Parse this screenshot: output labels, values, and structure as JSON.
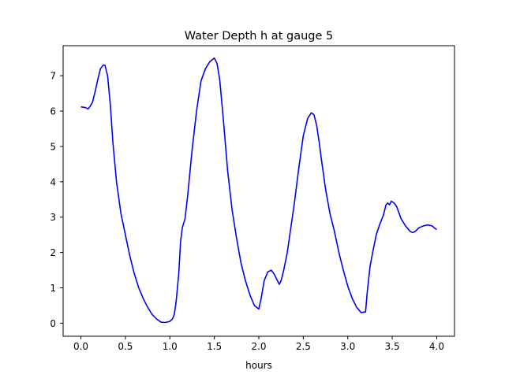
{
  "chart_data": {
    "type": "line",
    "title": "Water Depth h at gauge 5",
    "xlabel": "hours",
    "ylabel": "",
    "xlim": [
      -0.2,
      4.2
    ],
    "ylim": [
      -0.37,
      7.85
    ],
    "xticks": [
      0.0,
      0.5,
      1.0,
      1.5,
      2.0,
      2.5,
      3.0,
      3.5,
      4.0
    ],
    "xtick_labels": [
      "0.0",
      "0.5",
      "1.0",
      "1.5",
      "2.0",
      "2.5",
      "3.0",
      "3.5",
      "4.0"
    ],
    "yticks": [
      0,
      1,
      2,
      3,
      4,
      5,
      6,
      7
    ],
    "ytick_labels": [
      "0",
      "1",
      "2",
      "3",
      "4",
      "5",
      "6",
      "7"
    ],
    "grid": false,
    "legend": "none",
    "series": [
      {
        "color": "#0000ff",
        "x": [
          0.0,
          0.05,
          0.08,
          0.1,
          0.13,
          0.16,
          0.19,
          0.22,
          0.25,
          0.27,
          0.3,
          0.33,
          0.36,
          0.4,
          0.45,
          0.5,
          0.55,
          0.6,
          0.65,
          0.7,
          0.75,
          0.8,
          0.85,
          0.9,
          0.95,
          1.0,
          1.03,
          1.05,
          1.07,
          1.1,
          1.12,
          1.14,
          1.17,
          1.2,
          1.25,
          1.3,
          1.35,
          1.4,
          1.45,
          1.5,
          1.53,
          1.56,
          1.6,
          1.65,
          1.7,
          1.75,
          1.8,
          1.85,
          1.9,
          1.95,
          2.0,
          2.03,
          2.06,
          2.1,
          2.14,
          2.17,
          2.2,
          2.23,
          2.25,
          2.28,
          2.32,
          2.36,
          2.4,
          2.45,
          2.5,
          2.55,
          2.59,
          2.62,
          2.65,
          2.68,
          2.7,
          2.75,
          2.8,
          2.85,
          2.9,
          2.95,
          3.0,
          3.05,
          3.1,
          3.15,
          3.2,
          3.22,
          3.25,
          3.28,
          3.32,
          3.36,
          3.4,
          3.43,
          3.45,
          3.47,
          3.49,
          3.52,
          3.55,
          3.6,
          3.65,
          3.7,
          3.73,
          3.76,
          3.8,
          3.85,
          3.9,
          3.95,
          3.98,
          4.0
        ],
        "y": [
          6.12,
          6.1,
          6.06,
          6.12,
          6.25,
          6.55,
          6.9,
          7.2,
          7.3,
          7.3,
          7.0,
          6.2,
          5.1,
          4.0,
          3.1,
          2.5,
          1.9,
          1.4,
          1.0,
          0.7,
          0.45,
          0.25,
          0.12,
          0.03,
          0.02,
          0.05,
          0.12,
          0.25,
          0.6,
          1.4,
          2.3,
          2.7,
          2.95,
          3.6,
          4.9,
          6.0,
          6.85,
          7.2,
          7.4,
          7.5,
          7.35,
          6.9,
          5.8,
          4.3,
          3.2,
          2.4,
          1.7,
          1.2,
          0.8,
          0.5,
          0.4,
          0.75,
          1.2,
          1.45,
          1.5,
          1.4,
          1.25,
          1.1,
          1.2,
          1.5,
          2.0,
          2.7,
          3.4,
          4.4,
          5.3,
          5.8,
          5.95,
          5.9,
          5.6,
          5.1,
          4.7,
          3.8,
          3.1,
          2.6,
          2.0,
          1.5,
          1.05,
          0.7,
          0.45,
          0.3,
          0.32,
          0.9,
          1.6,
          2.0,
          2.5,
          2.8,
          3.05,
          3.35,
          3.4,
          3.35,
          3.45,
          3.4,
          3.3,
          2.95,
          2.75,
          2.6,
          2.56,
          2.6,
          2.7,
          2.75,
          2.78,
          2.75,
          2.68,
          2.65
        ]
      }
    ]
  }
}
